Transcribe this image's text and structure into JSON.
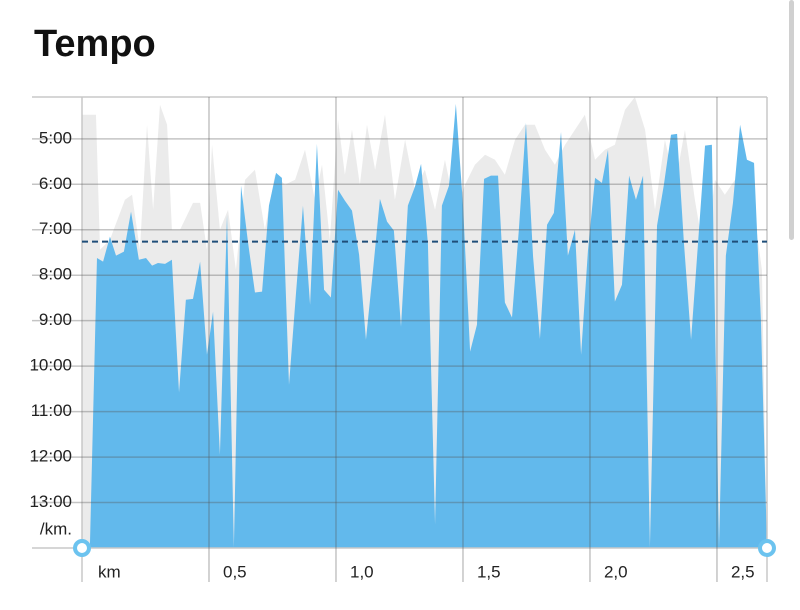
{
  "chart_data": {
    "type": "area",
    "title": "Tempo",
    "x_label": "km",
    "y_label": "/km.",
    "xlim": [
      0,
      2.697
    ],
    "xticks": [
      {
        "value": 0.5,
        "label": "0,5"
      },
      {
        "value": 1.0,
        "label": "1,0"
      },
      {
        "value": 1.5,
        "label": "1,5"
      },
      {
        "value": 2.0,
        "label": "2,0"
      },
      {
        "value": 2.5,
        "label": "2,5"
      }
    ],
    "ylim": [
      4.08,
      14
    ],
    "y_inverted": true,
    "yticks": [
      {
        "value": 5,
        "label": "5:00"
      },
      {
        "value": 6,
        "label": "6:00"
      },
      {
        "value": 7,
        "label": "7:00"
      },
      {
        "value": 8,
        "label": "8:00"
      },
      {
        "value": 9,
        "label": "9:00"
      },
      {
        "value": 10,
        "label": "10:00"
      },
      {
        "value": 11,
        "label": "11:00"
      },
      {
        "value": 12,
        "label": "12:00"
      },
      {
        "value": 13,
        "label": "13:00"
      }
    ],
    "grid": true,
    "reference_line": {
      "value": 7.26,
      "color": "#1f4e79"
    },
    "series": [
      {
        "color": "#ebebeb",
        "x": [
          0,
          0.055,
          0.071,
          0.11,
          0.169,
          0.197,
          0.228,
          0.256,
          0.28,
          0.307,
          0.335,
          0.354,
          0.386,
          0.437,
          0.465,
          0.492,
          0.512,
          0.543,
          0.575,
          0.606,
          0.642,
          0.681,
          0.72,
          0.76,
          0.799,
          0.839,
          0.878,
          0.917,
          0.945,
          0.976,
          1.008,
          1.035,
          1.063,
          1.094,
          1.122,
          1.154,
          1.193,
          1.232,
          1.272,
          1.311,
          1.35,
          1.39,
          1.429,
          1.469,
          1.508,
          1.547,
          1.587,
          1.626,
          1.665,
          1.705,
          1.744,
          1.783,
          1.823,
          1.862,
          1.902,
          1.941,
          1.98,
          2.02,
          2.059,
          2.098,
          2.138,
          2.177,
          2.217,
          2.256,
          2.295,
          2.335,
          2.374,
          2.413,
          2.453,
          2.492,
          2.531,
          2.571,
          2.61,
          2.65,
          2.677,
          2.697
        ],
        "values": [
          4.47,
          4.47,
          7.44,
          7.22,
          6.34,
          6.23,
          7.44,
          4.69,
          6.56,
          4.25,
          4.69,
          7.0,
          7.0,
          6.41,
          6.41,
          7.44,
          5.13,
          7.0,
          6.56,
          7.88,
          5.9,
          5.68,
          7.0,
          5.79,
          6.01,
          5.9,
          5.24,
          6.34,
          5.57,
          7.22,
          4.58,
          5.79,
          4.8,
          6.01,
          4.69,
          5.68,
          4.47,
          6.34,
          5.02,
          6.12,
          5.68,
          6.56,
          5.46,
          6.56,
          6.01,
          5.57,
          5.35,
          5.46,
          5.79,
          5.02,
          4.69,
          4.69,
          5.24,
          5.57,
          5.13,
          4.8,
          4.47,
          5.46,
          5.24,
          5.13,
          4.36,
          4.08,
          4.8,
          6.56,
          5.02,
          6.01,
          4.8,
          6.34,
          7.66,
          5.9,
          6.23,
          5.9,
          6.34,
          6.78,
          7.88,
          13.99
        ]
      },
      {
        "color": "#62b9ec",
        "x": [
          0.031,
          0.059,
          0.083,
          0.11,
          0.134,
          0.165,
          0.193,
          0.224,
          0.252,
          0.276,
          0.299,
          0.327,
          0.354,
          0.382,
          0.409,
          0.437,
          0.465,
          0.492,
          0.516,
          0.543,
          0.571,
          0.598,
          0.626,
          0.654,
          0.681,
          0.709,
          0.736,
          0.764,
          0.787,
          0.815,
          0.843,
          0.87,
          0.898,
          0.925,
          0.953,
          0.98,
          1.008,
          1.035,
          1.063,
          1.091,
          1.118,
          1.146,
          1.173,
          1.201,
          1.228,
          1.256,
          1.283,
          1.311,
          1.335,
          1.362,
          1.39,
          1.417,
          1.445,
          1.472,
          1.5,
          1.528,
          1.555,
          1.583,
          1.61,
          1.638,
          1.665,
          1.693,
          1.72,
          1.748,
          1.776,
          1.803,
          1.831,
          1.858,
          1.886,
          1.913,
          1.941,
          1.965,
          1.992,
          2.02,
          2.047,
          2.071,
          2.098,
          2.126,
          2.154,
          2.181,
          2.209,
          2.236,
          2.264,
          2.291,
          2.319,
          2.343,
          2.37,
          2.398,
          2.425,
          2.453,
          2.48,
          2.508,
          2.535,
          2.563,
          2.591,
          2.618,
          2.646,
          2.673,
          2.697
        ],
        "values": [
          13.99,
          7.62,
          7.7,
          7.15,
          7.57,
          7.48,
          6.6,
          7.66,
          7.62,
          7.79,
          7.73,
          7.75,
          7.66,
          10.58,
          8.54,
          8.52,
          7.7,
          9.75,
          8.8,
          11.95,
          6.67,
          13.99,
          6.03,
          7.29,
          8.38,
          8.36,
          6.47,
          5.75,
          5.86,
          10.41,
          8.36,
          6.47,
          8.65,
          5.11,
          8.32,
          8.49,
          6.12,
          6.36,
          6.58,
          7.55,
          9.42,
          7.88,
          6.32,
          6.82,
          7.02,
          9.13,
          6.47,
          6.05,
          5.55,
          7.31,
          13.48,
          6.47,
          6.03,
          4.23,
          6.45,
          9.68,
          9.09,
          5.88,
          5.81,
          5.81,
          8.6,
          8.93,
          7.0,
          4.65,
          7.59,
          9.4,
          6.89,
          6.63,
          4.85,
          7.57,
          7.0,
          9.75,
          7.46,
          5.86,
          5.97,
          5.24,
          8.58,
          8.21,
          5.81,
          6.34,
          5.81,
          13.99,
          6.91,
          6.01,
          4.91,
          4.89,
          7.29,
          9.42,
          7.33,
          5.15,
          5.13,
          13.99,
          7.57,
          6.41,
          4.69,
          5.46,
          5.53,
          8.98,
          13.99
        ]
      }
    ]
  }
}
